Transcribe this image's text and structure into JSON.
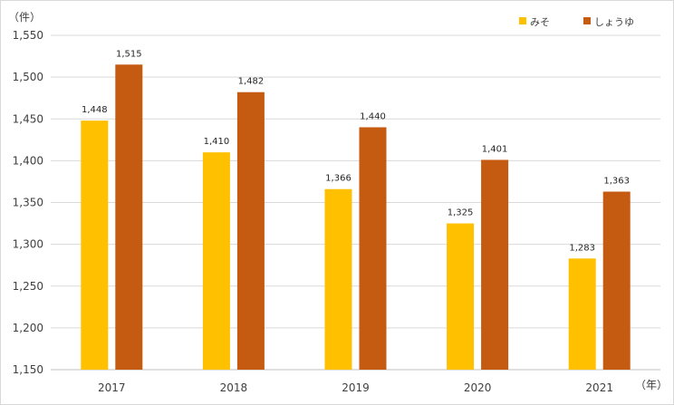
{
  "chart_data": {
    "type": "bar",
    "title": "",
    "xlabel": "（年）",
    "ylabel": "（件）",
    "categories": [
      "2017",
      "2018",
      "2019",
      "2020",
      "2021"
    ],
    "series": [
      {
        "name": "みそ",
        "color": "#FFC000",
        "values": [
          1448,
          1410,
          1366,
          1325,
          1283
        ]
      },
      {
        "name": "しょうゆ",
        "color": "#C55A11",
        "values": [
          1515,
          1482,
          1440,
          1401,
          1363
        ]
      }
    ],
    "ylim": [
      1150,
      1550
    ],
    "yticks": [
      1150,
      1200,
      1250,
      1300,
      1350,
      1400,
      1450,
      1500,
      1550
    ],
    "grid": true,
    "legend_position": "top-right"
  }
}
